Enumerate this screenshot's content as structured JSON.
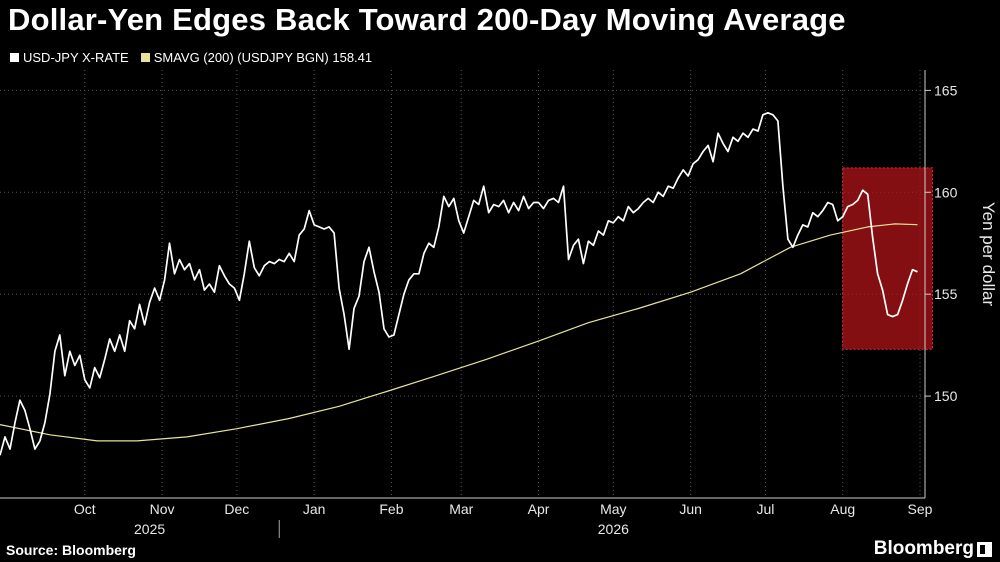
{
  "title": "Dollar-Yen Edges Back Toward 200-Day Moving Average",
  "source": "Source: Bloomberg",
  "brand": "Bloomberg",
  "colors": {
    "background": "#000000",
    "spot": "#ffffff",
    "sma": "#e8e49a",
    "highlight": "#b0141a"
  },
  "legend": [
    {
      "label": "USD-JPY X-RATE",
      "color": "#ffffff"
    },
    {
      "label": "SMAVG (200) (USDJPY BGN) 158.41",
      "color": "#e8e49a"
    }
  ],
  "chart_data": {
    "type": "line",
    "ylabel": "Yen per dollar",
    "xlabel": "",
    "ylim": [
      145,
      166
    ],
    "y_ticks": [
      150,
      155,
      160,
      165
    ],
    "x_range": [
      "2025-09-11",
      "2026-09-17"
    ],
    "month_ticks": [
      {
        "label": "Oct",
        "date": "2025-10-15"
      },
      {
        "label": "Nov",
        "date": "2025-11-15"
      },
      {
        "label": "Dec",
        "date": "2025-12-15"
      },
      {
        "label": "Jan",
        "date": "2026-01-15"
      },
      {
        "label": "Feb",
        "date": "2026-02-15"
      },
      {
        "label": "Mar",
        "date": "2026-03-15"
      },
      {
        "label": "Apr",
        "date": "2026-04-15"
      },
      {
        "label": "May",
        "date": "2026-05-15"
      },
      {
        "label": "Jun",
        "date": "2026-06-15"
      },
      {
        "label": "Jul",
        "date": "2026-07-15"
      },
      {
        "label": "Aug",
        "date": "2026-08-15"
      },
      {
        "label": "Sep",
        "date": "2026-09-15"
      }
    ],
    "year_labels": [
      {
        "label": "2025",
        "date": "2025-11-10"
      },
      {
        "label": "2026",
        "date": "2026-05-15"
      }
    ],
    "year_divider": "2026-01-01",
    "highlight": {
      "from": "2026-08-15",
      "to": "2026-09-20",
      "y0": 152.3,
      "y1": 161.2
    },
    "series": [
      {
        "name": "USD-JPY X-RATE",
        "color": "#ffffff",
        "points": [
          [
            "2025-09-11",
            147.1
          ],
          [
            "2025-09-13",
            148.0
          ],
          [
            "2025-09-15",
            147.4
          ],
          [
            "2025-09-17",
            148.7
          ],
          [
            "2025-09-19",
            149.8
          ],
          [
            "2025-09-21",
            149.3
          ],
          [
            "2025-09-23",
            148.4
          ],
          [
            "2025-09-25",
            147.4
          ],
          [
            "2025-09-27",
            147.8
          ],
          [
            "2025-09-29",
            148.7
          ],
          [
            "2025-10-01",
            150.1
          ],
          [
            "2025-10-03",
            152.2
          ],
          [
            "2025-10-05",
            153.0
          ],
          [
            "2025-10-07",
            151.0
          ],
          [
            "2025-10-09",
            152.2
          ],
          [
            "2025-10-11",
            151.5
          ],
          [
            "2025-10-13",
            152.0
          ],
          [
            "2025-10-15",
            150.8
          ],
          [
            "2025-10-17",
            150.4
          ],
          [
            "2025-10-19",
            151.4
          ],
          [
            "2025-10-21",
            150.9
          ],
          [
            "2025-10-23",
            151.8
          ],
          [
            "2025-10-25",
            152.8
          ],
          [
            "2025-10-27",
            152.2
          ],
          [
            "2025-10-29",
            153.0
          ],
          [
            "2025-10-31",
            152.2
          ],
          [
            "2025-11-02",
            153.7
          ],
          [
            "2025-11-04",
            153.3
          ],
          [
            "2025-11-06",
            154.5
          ],
          [
            "2025-11-08",
            153.5
          ],
          [
            "2025-11-10",
            154.6
          ],
          [
            "2025-11-12",
            155.3
          ],
          [
            "2025-11-14",
            154.7
          ],
          [
            "2025-11-16",
            155.7
          ],
          [
            "2025-11-18",
            157.5
          ],
          [
            "2025-11-20",
            156.0
          ],
          [
            "2025-11-22",
            156.7
          ],
          [
            "2025-11-24",
            156.2
          ],
          [
            "2025-11-26",
            156.5
          ],
          [
            "2025-11-28",
            155.7
          ],
          [
            "2025-11-30",
            156.2
          ],
          [
            "2025-12-02",
            155.2
          ],
          [
            "2025-12-04",
            155.5
          ],
          [
            "2025-12-06",
            155.1
          ],
          [
            "2025-12-08",
            156.4
          ],
          [
            "2025-12-10",
            155.9
          ],
          [
            "2025-12-12",
            155.5
          ],
          [
            "2025-12-14",
            155.3
          ],
          [
            "2025-12-16",
            154.7
          ],
          [
            "2025-12-18",
            156.0
          ],
          [
            "2025-12-20",
            157.6
          ],
          [
            "2025-12-22",
            156.3
          ],
          [
            "2025-12-24",
            155.9
          ],
          [
            "2025-12-26",
            156.4
          ],
          [
            "2025-12-28",
            156.6
          ],
          [
            "2025-12-30",
            156.5
          ],
          [
            "2026-01-01",
            156.7
          ],
          [
            "2026-01-03",
            156.6
          ],
          [
            "2026-01-05",
            157.0
          ],
          [
            "2026-01-07",
            156.6
          ],
          [
            "2026-01-09",
            157.9
          ],
          [
            "2026-01-11",
            158.2
          ],
          [
            "2026-01-13",
            159.1
          ],
          [
            "2026-01-15",
            158.4
          ],
          [
            "2026-01-17",
            158.3
          ],
          [
            "2026-01-19",
            158.2
          ],
          [
            "2026-01-21",
            158.3
          ],
          [
            "2026-01-23",
            158.0
          ],
          [
            "2026-01-25",
            155.3
          ],
          [
            "2026-01-27",
            154.0
          ],
          [
            "2026-01-29",
            152.3
          ],
          [
            "2026-01-31",
            154.3
          ],
          [
            "2026-02-02",
            154.9
          ],
          [
            "2026-02-04",
            156.6
          ],
          [
            "2026-02-06",
            157.3
          ],
          [
            "2026-02-08",
            156.1
          ],
          [
            "2026-02-10",
            155.1
          ],
          [
            "2026-02-12",
            153.3
          ],
          [
            "2026-02-14",
            152.9
          ],
          [
            "2026-02-16",
            153.0
          ],
          [
            "2026-02-18",
            154.0
          ],
          [
            "2026-02-20",
            155.0
          ],
          [
            "2026-02-22",
            155.7
          ],
          [
            "2026-02-24",
            156.0
          ],
          [
            "2026-02-26",
            156.0
          ],
          [
            "2026-02-28",
            157.0
          ],
          [
            "2026-03-02",
            157.5
          ],
          [
            "2026-03-04",
            157.3
          ],
          [
            "2026-03-06",
            158.3
          ],
          [
            "2026-03-08",
            159.8
          ],
          [
            "2026-03-10",
            159.3
          ],
          [
            "2026-03-12",
            159.7
          ],
          [
            "2026-03-14",
            158.6
          ],
          [
            "2026-03-16",
            158.0
          ],
          [
            "2026-03-18",
            158.8
          ],
          [
            "2026-03-20",
            159.6
          ],
          [
            "2026-03-22",
            159.4
          ],
          [
            "2026-03-24",
            160.3
          ],
          [
            "2026-03-26",
            159.0
          ],
          [
            "2026-03-28",
            159.4
          ],
          [
            "2026-03-30",
            159.3
          ],
          [
            "2026-04-01",
            159.6
          ],
          [
            "2026-04-03",
            159.0
          ],
          [
            "2026-04-05",
            159.5
          ],
          [
            "2026-04-07",
            159.1
          ],
          [
            "2026-04-09",
            159.8
          ],
          [
            "2026-04-11",
            159.2
          ],
          [
            "2026-04-13",
            159.5
          ],
          [
            "2026-04-15",
            159.5
          ],
          [
            "2026-04-17",
            159.2
          ],
          [
            "2026-04-19",
            159.6
          ],
          [
            "2026-04-21",
            159.7
          ],
          [
            "2026-04-23",
            159.5
          ],
          [
            "2026-04-25",
            160.3
          ],
          [
            "2026-04-27",
            156.7
          ],
          [
            "2026-04-29",
            157.4
          ],
          [
            "2026-05-01",
            157.7
          ],
          [
            "2026-05-03",
            156.5
          ],
          [
            "2026-05-05",
            157.6
          ],
          [
            "2026-05-07",
            157.4
          ],
          [
            "2026-05-09",
            158.1
          ],
          [
            "2026-05-11",
            157.9
          ],
          [
            "2026-05-13",
            158.6
          ],
          [
            "2026-05-15",
            158.5
          ],
          [
            "2026-05-17",
            158.8
          ],
          [
            "2026-05-19",
            158.6
          ],
          [
            "2026-05-21",
            159.3
          ],
          [
            "2026-05-23",
            159.0
          ],
          [
            "2026-05-25",
            159.2
          ],
          [
            "2026-05-27",
            159.5
          ],
          [
            "2026-05-29",
            159.7
          ],
          [
            "2026-05-31",
            159.5
          ],
          [
            "2026-06-02",
            160.0
          ],
          [
            "2026-06-04",
            159.8
          ],
          [
            "2026-06-06",
            160.3
          ],
          [
            "2026-06-08",
            160.2
          ],
          [
            "2026-06-10",
            160.7
          ],
          [
            "2026-06-12",
            161.1
          ],
          [
            "2026-06-14",
            160.8
          ],
          [
            "2026-06-16",
            161.4
          ],
          [
            "2026-06-18",
            161.6
          ],
          [
            "2026-06-20",
            162.0
          ],
          [
            "2026-06-22",
            162.3
          ],
          [
            "2026-06-24",
            161.5
          ],
          [
            "2026-06-26",
            162.9
          ],
          [
            "2026-06-28",
            162.4
          ],
          [
            "2026-06-30",
            162.0
          ],
          [
            "2026-07-02",
            162.7
          ],
          [
            "2026-07-04",
            162.5
          ],
          [
            "2026-07-06",
            162.9
          ],
          [
            "2026-07-08",
            162.7
          ],
          [
            "2026-07-10",
            163.1
          ],
          [
            "2026-07-12",
            163.0
          ],
          [
            "2026-07-14",
            163.8
          ],
          [
            "2026-07-16",
            163.9
          ],
          [
            "2026-07-18",
            163.8
          ],
          [
            "2026-07-20",
            163.5
          ],
          [
            "2026-07-22",
            160.3
          ],
          [
            "2026-07-24",
            157.7
          ],
          [
            "2026-07-26",
            157.3
          ],
          [
            "2026-07-28",
            157.9
          ],
          [
            "2026-07-30",
            158.4
          ],
          [
            "2026-08-01",
            158.3
          ],
          [
            "2026-08-03",
            159.0
          ],
          [
            "2026-08-05",
            158.8
          ],
          [
            "2026-08-07",
            159.1
          ],
          [
            "2026-08-09",
            159.5
          ],
          [
            "2026-08-11",
            159.4
          ],
          [
            "2026-08-13",
            158.6
          ],
          [
            "2026-08-15",
            158.8
          ],
          [
            "2026-08-17",
            159.3
          ],
          [
            "2026-08-19",
            159.4
          ],
          [
            "2026-08-21",
            159.6
          ],
          [
            "2026-08-23",
            160.1
          ],
          [
            "2026-08-25",
            159.9
          ],
          [
            "2026-08-27",
            157.8
          ],
          [
            "2026-08-29",
            156.0
          ],
          [
            "2026-08-31",
            155.2
          ],
          [
            "2026-09-02",
            154.0
          ],
          [
            "2026-09-04",
            153.9
          ],
          [
            "2026-09-06",
            154.0
          ],
          [
            "2026-09-08",
            154.7
          ],
          [
            "2026-09-10",
            155.5
          ],
          [
            "2026-09-12",
            156.2
          ],
          [
            "2026-09-14",
            156.1
          ]
        ]
      },
      {
        "name": "SMAVG (200) (USDJPY BGN) 158.41",
        "color": "#e8e49a",
        "points": [
          [
            "2025-09-11",
            148.6
          ],
          [
            "2025-10-01",
            148.1
          ],
          [
            "2025-10-20",
            147.8
          ],
          [
            "2025-11-05",
            147.8
          ],
          [
            "2025-11-25",
            148.0
          ],
          [
            "2025-12-15",
            148.4
          ],
          [
            "2026-01-05",
            148.9
          ],
          [
            "2026-01-25",
            149.5
          ],
          [
            "2026-02-15",
            150.3
          ],
          [
            "2026-03-05",
            151.0
          ],
          [
            "2026-03-25",
            151.8
          ],
          [
            "2026-04-15",
            152.7
          ],
          [
            "2026-05-05",
            153.6
          ],
          [
            "2026-05-25",
            154.3
          ],
          [
            "2026-06-15",
            155.1
          ],
          [
            "2026-07-05",
            156.0
          ],
          [
            "2026-07-25",
            157.3
          ],
          [
            "2026-08-10",
            157.9
          ],
          [
            "2026-08-25",
            158.3
          ],
          [
            "2026-09-05",
            158.45
          ],
          [
            "2026-09-14",
            158.41
          ]
        ]
      }
    ]
  }
}
